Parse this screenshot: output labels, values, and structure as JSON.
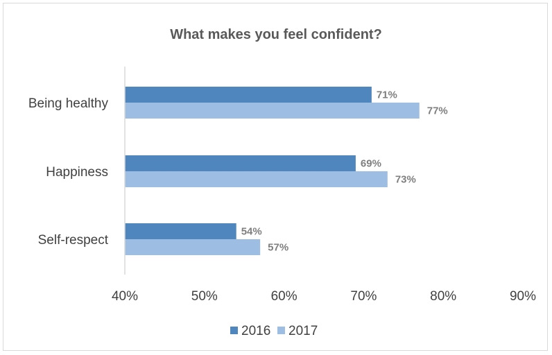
{
  "chart_data": {
    "type": "bar",
    "orientation": "horizontal",
    "title": "What makes you feel confident?",
    "categories": [
      "Being healthy",
      "Happiness",
      "Self-respect"
    ],
    "series": [
      {
        "name": "2016",
        "values": [
          71,
          69,
          54
        ],
        "labels": [
          "71%",
          "69%",
          "54%"
        ],
        "color": "#4f86bd"
      },
      {
        "name": "2017",
        "values": [
          77,
          73,
          57
        ],
        "labels": [
          "77%",
          "73%",
          "57%"
        ],
        "color": "#9dbde2"
      }
    ],
    "xlim": [
      40,
      90
    ],
    "xticks": [
      40,
      50,
      60,
      70,
      80,
      90
    ],
    "xtick_labels": [
      "40%",
      "50%",
      "60%",
      "70%",
      "80%",
      "90%"
    ],
    "grid": false,
    "legend_position": "bottom"
  }
}
